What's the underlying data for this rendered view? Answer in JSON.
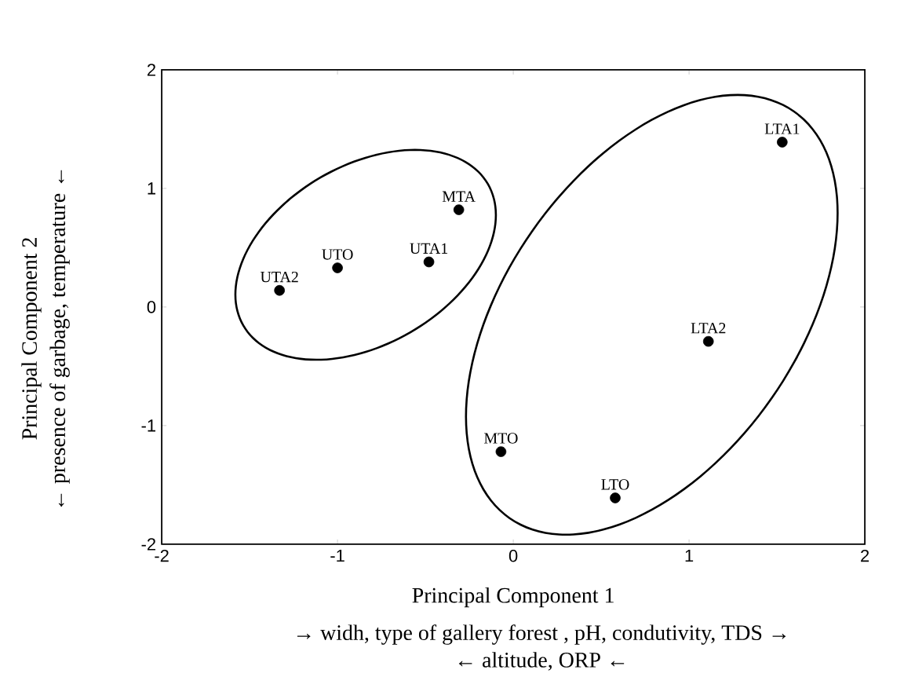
{
  "chart_data": {
    "type": "scatter",
    "xlabel": "Principal Component 1",
    "x": [
      -1.33,
      -1.0,
      -0.48,
      -0.31,
      -0.07,
      0.58,
      1.11,
      1.53
    ],
    "values": [
      0.14,
      0.33,
      0.38,
      0.82,
      -1.22,
      -1.61,
      -0.29,
      1.39
    ],
    "color": "#000000",
    "marker": "circle",
    "xlim": [
      -2,
      2
    ],
    "ylim": [
      -2,
      2
    ],
    "xticks": [
      -2,
      -1,
      0,
      1,
      2
    ],
    "yticks": [
      -2,
      -1,
      0,
      1,
      2
    ],
    "grid": false,
    "annotations": [
      {
        "text": "UTA2",
        "x": -1.33,
        "y": 0.14
      },
      {
        "text": "UTO",
        "x": -1.0,
        "y": 0.33
      },
      {
        "text": "UTA1",
        "x": -0.48,
        "y": 0.38
      },
      {
        "text": "MTA",
        "x": -0.31,
        "y": 0.82
      },
      {
        "text": "MTO",
        "x": -0.07,
        "y": -1.22
      },
      {
        "text": "LTO",
        "x": 0.58,
        "y": -1.61
      },
      {
        "text": "LTA2",
        "x": 1.11,
        "y": -0.29
      },
      {
        "text": "LTA1",
        "x": 1.53,
        "y": 1.39
      },
      "Principal Component 2",
      "← presence of garbage,  temperature ←",
      "→ widh, type of gallery forest , pH, condutivity, TDS →",
      "← altitude, ORP ←"
    ]
  }
}
